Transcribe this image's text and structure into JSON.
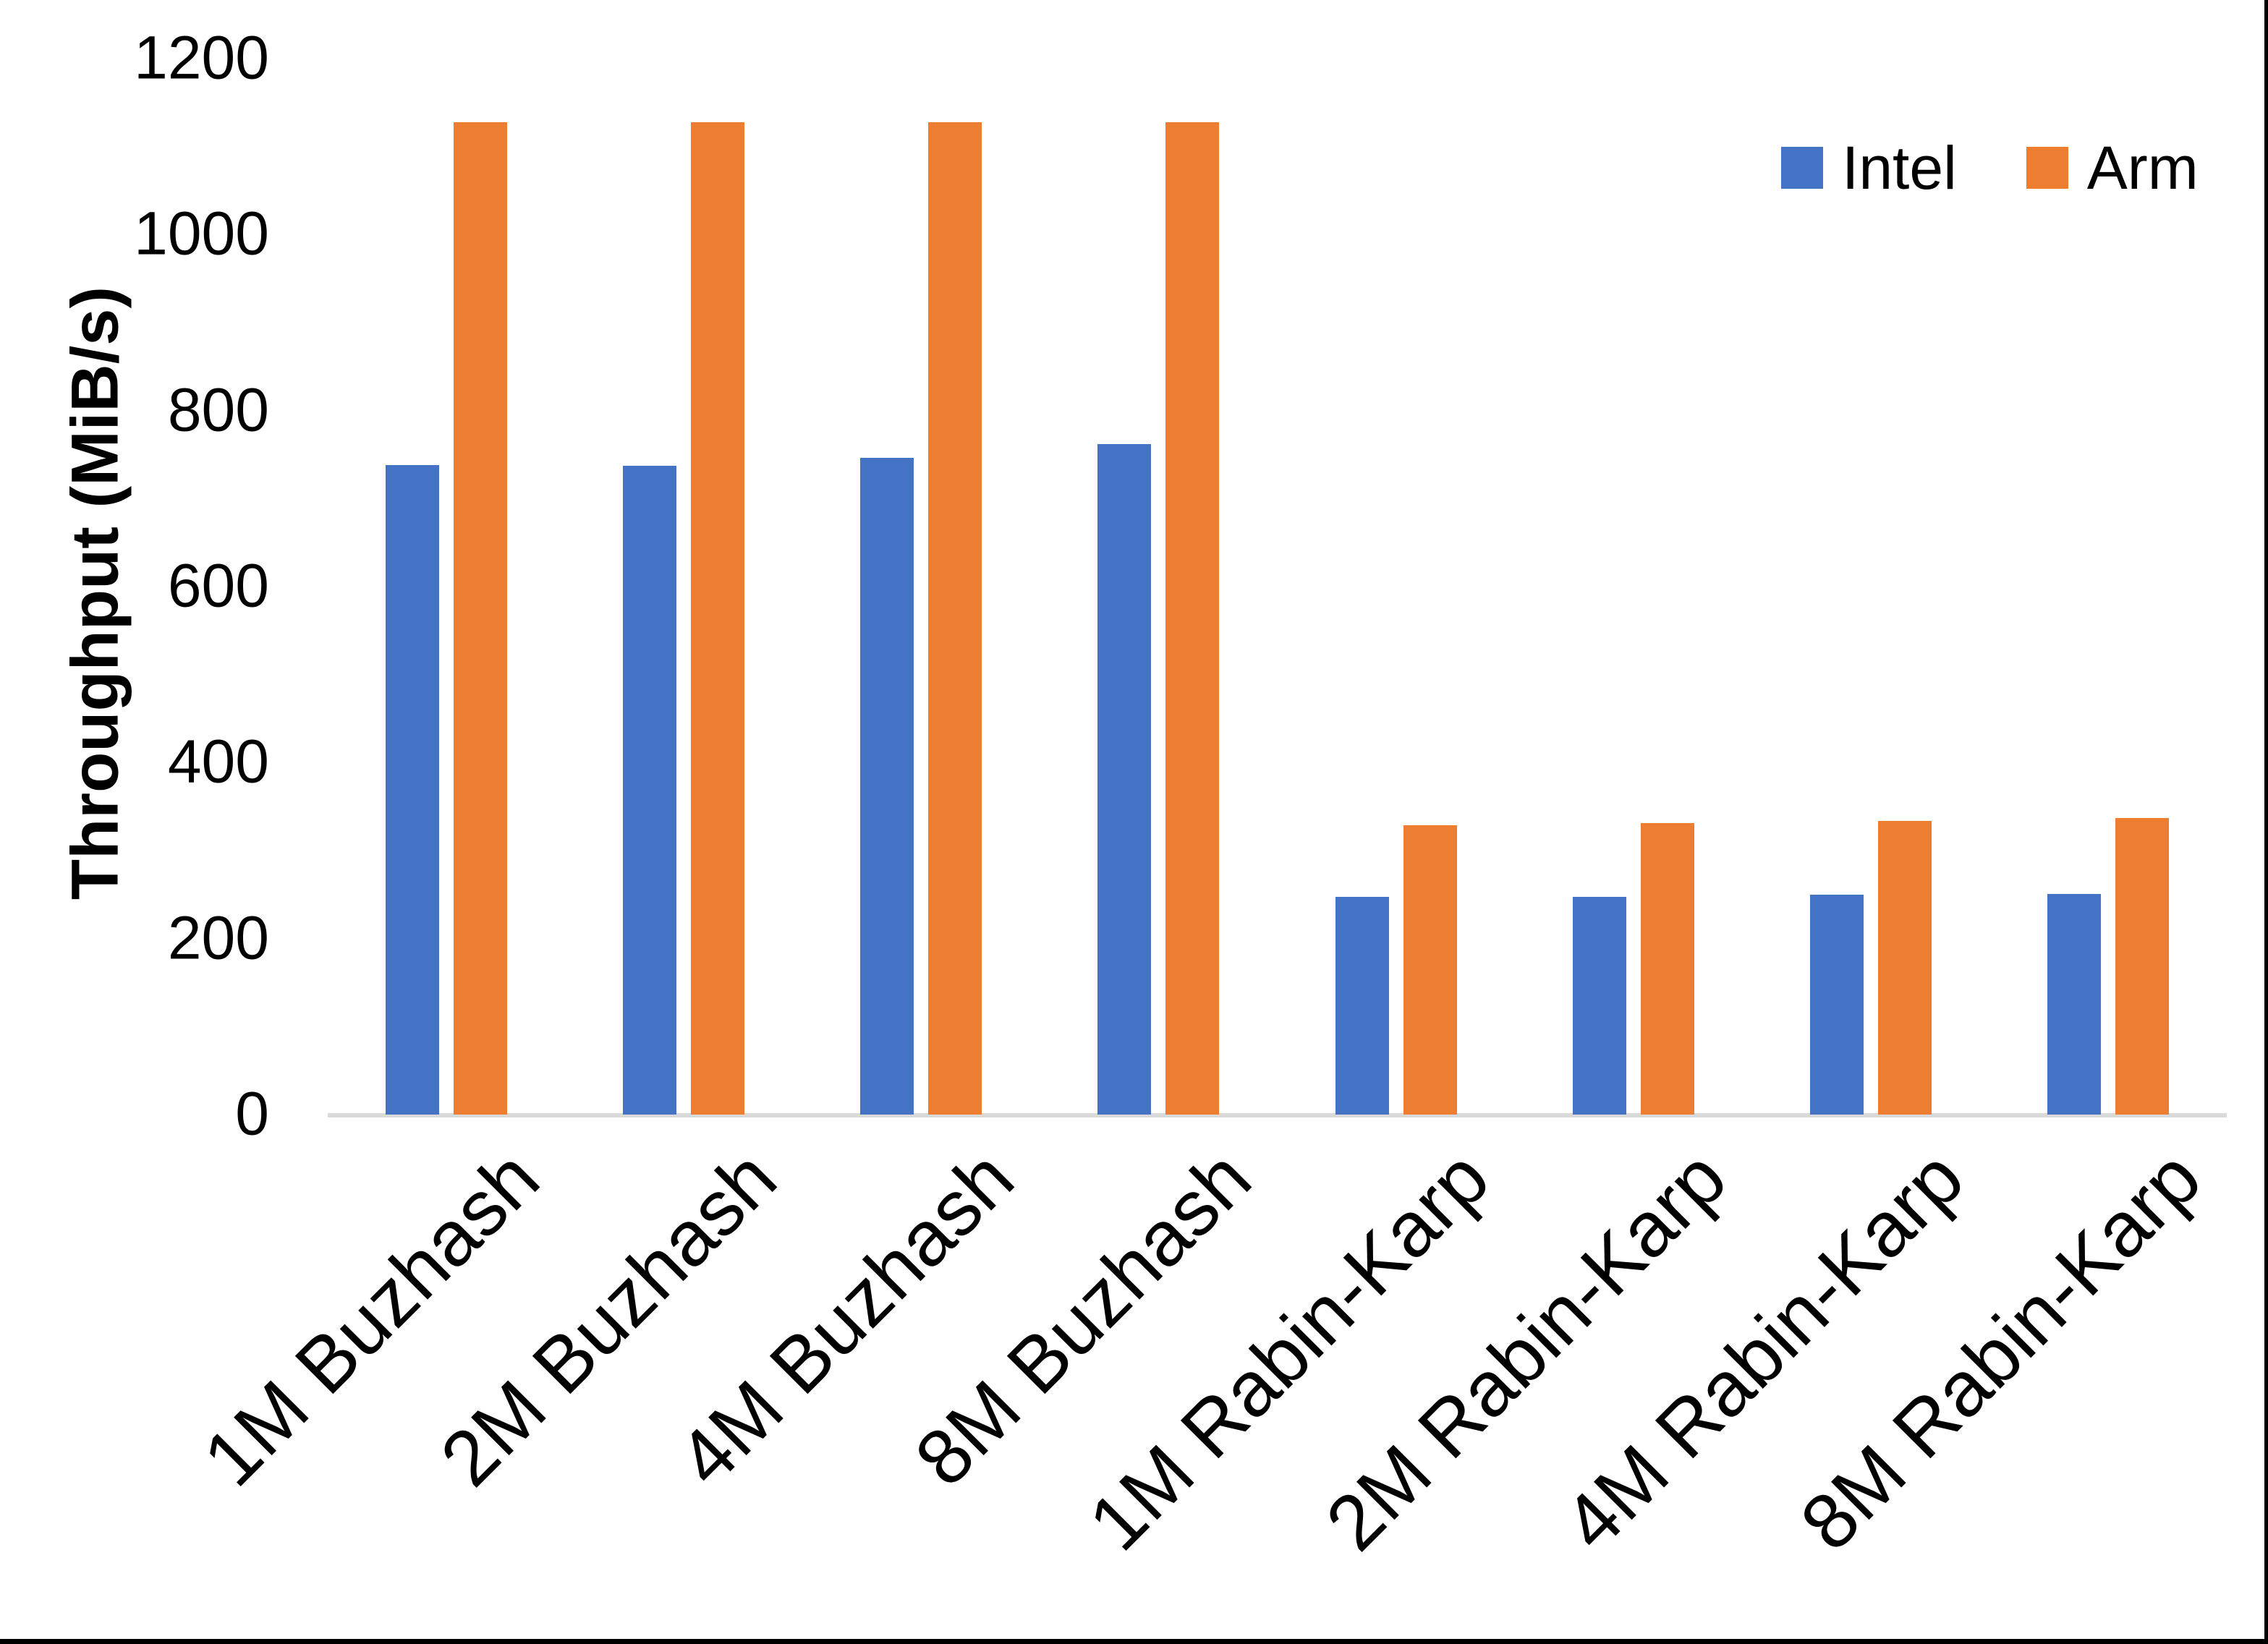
{
  "chart_data": {
    "type": "bar",
    "categories": [
      "1M Buzhash",
      "2M Buzhash",
      "4M Buzhash",
      "8M Buzhash",
      "1M Rabin-Karp",
      "2M Rabin-Karp",
      "4M Rabin-Karp",
      "8M Rabin-Karp"
    ],
    "series": [
      {
        "name": "Intel",
        "color": "#4472C4",
        "values": [
          738,
          737,
          746,
          762,
          247,
          247,
          250,
          251
        ]
      },
      {
        "name": "Arm",
        "color": "#ED7D31",
        "values": [
          1128,
          1128,
          1128,
          1128,
          329,
          331,
          334,
          337
        ]
      }
    ],
    "title": "",
    "xlabel": "",
    "ylabel": "Throughput (MiB/s)",
    "ylim": [
      0,
      1200
    ],
    "ytick_step": 200,
    "yticks": [
      0,
      200,
      400,
      600,
      800,
      1000,
      1200
    ],
    "grid": false,
    "legend_position": "top-right",
    "axis_line_color": "#D9D9D9",
    "text_color": "#000000",
    "border_color": "#000000",
    "background": "#FFFFFF"
  }
}
